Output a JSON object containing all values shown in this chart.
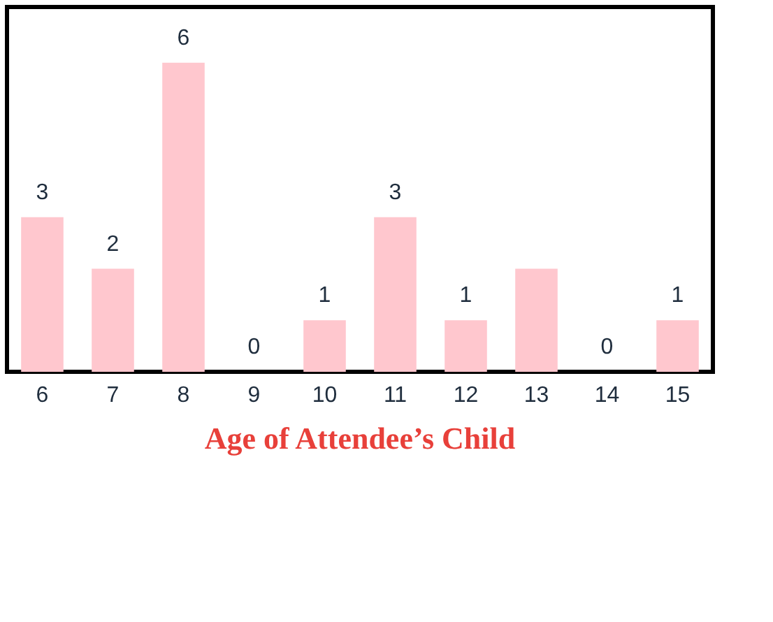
{
  "chart_data": {
    "type": "bar",
    "title": "Age of Attendee’s Child",
    "categories": [
      "6",
      "7",
      "8",
      "9",
      "10",
      "11",
      "12",
      "13",
      "14",
      "15"
    ],
    "values": [
      3,
      2,
      6,
      0,
      1,
      3,
      1,
      2,
      0,
      1
    ],
    "value_labels": [
      "3",
      "2",
      "6",
      "0",
      "1",
      "3",
      "1",
      null,
      "0",
      "1"
    ],
    "color": "#ffc7ce"
  }
}
